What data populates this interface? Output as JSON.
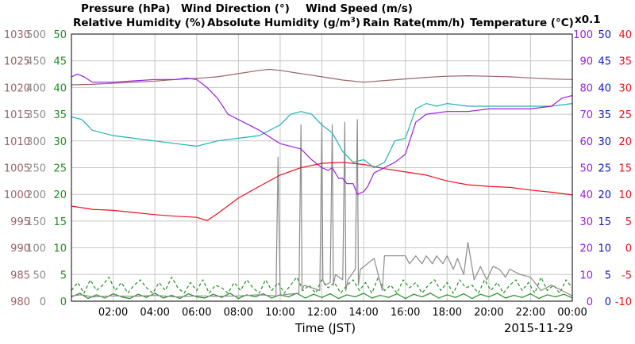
{
  "colors": {
    "pressure": "#9a6565",
    "wind_direction": "#8c8c8c",
    "wind_speed": "#1f8f1f",
    "humidity": "#9b1fe0",
    "abs_humidity": "#22b3b3",
    "rain_rate": "#1515d0",
    "temperature": "#ee1020",
    "grid": "#c8c8c8",
    "frame": "#000000"
  },
  "legend": {
    "pressure": "Pressure (hPa)",
    "wind_direction": "Wind Direction (°)",
    "wind_speed": "Wind Speed (m/s)",
    "humidity": "Relative Humidity (%)",
    "abs_humidity_main": "Absolute Humidity (g/m",
    "abs_humidity_sup": "3",
    "abs_humidity_close": ")",
    "rain_rate": "Rain Rate(mm/h)",
    "temperature": "Temperature (°C)",
    "scale_note": "x0.1"
  },
  "footer": {
    "xlabel": "Time (JST)",
    "date": "2015-11-29"
  },
  "chart_data": {
    "type": "line",
    "x_unit": "hours (JST)",
    "xlim": [
      0,
      24
    ],
    "x_ticks": [
      {
        "x": 2,
        "label": "02:00"
      },
      {
        "x": 4,
        "label": "04:00"
      },
      {
        "x": 6,
        "label": "06:00"
      },
      {
        "x": 8,
        "label": "08:00"
      },
      {
        "x": 10,
        "label": "10:00"
      },
      {
        "x": 12,
        "label": "12:00"
      },
      {
        "x": 14,
        "label": "14:00"
      },
      {
        "x": 16,
        "label": "16:00"
      },
      {
        "x": 18,
        "label": "18:00"
      },
      {
        "x": 20,
        "label": "20:00"
      },
      {
        "x": 22,
        "label": "22:00"
      },
      {
        "x": 24,
        "label": "00:00"
      }
    ],
    "axes": {
      "pressure": {
        "ticks": [
          "980",
          "985",
          "990",
          "995",
          "1000",
          "1005",
          "1010",
          "1015",
          "1020",
          "1025",
          "1030"
        ]
      },
      "wind_direction": {
        "ticks": [
          "0",
          "50",
          "100",
          "150",
          "200",
          "250",
          "300",
          "350",
          "400",
          "450",
          "500"
        ]
      },
      "wind_speed": {
        "ticks": [
          "0",
          "5",
          "10",
          "15",
          "20",
          "25",
          "30",
          "35",
          "40",
          "45",
          "50"
        ]
      },
      "humidity": {
        "ticks": [
          "0",
          "10",
          "20",
          "30",
          "40",
          "50",
          "60",
          "70",
          "80",
          "90",
          "100"
        ]
      },
      "rain_rate": {
        "ticks": [
          "0",
          "5",
          "10",
          "15",
          "20",
          "25",
          "30",
          "35",
          "40",
          "45",
          "50"
        ]
      },
      "temperature": {
        "ticks": [
          "-10",
          "-5",
          "0",
          "5",
          "10",
          "15",
          "20",
          "25",
          "30",
          "35",
          "40"
        ]
      }
    },
    "series": [
      {
        "name": "Pressure (hPa)",
        "key": "pressure",
        "dash": "",
        "x": [
          0,
          1,
          2,
          3,
          4,
          5,
          6,
          7,
          8,
          9,
          9.5,
          10,
          11,
          12,
          13,
          14,
          15,
          16,
          17,
          18,
          19,
          20,
          21,
          22,
          23,
          24
        ],
        "y": [
          1020.5,
          1020.6,
          1020.8,
          1021.0,
          1021.2,
          1021.5,
          1021.7,
          1022.0,
          1022.6,
          1023.2,
          1023.4,
          1023.2,
          1022.6,
          1022.0,
          1021.4,
          1021.0,
          1021.3,
          1021.6,
          1021.9,
          1022.1,
          1022.2,
          1022.1,
          1022.0,
          1021.8,
          1021.6,
          1021.5
        ]
      },
      {
        "name": "Relative Humidity (%)",
        "key": "humidity",
        "dash": "",
        "x": [
          0,
          0.3,
          0.6,
          1,
          2,
          3,
          4,
          5,
          5.5,
          6,
          6.5,
          7,
          7.5,
          8,
          9,
          10,
          11,
          11.5,
          12,
          12.3,
          12.5,
          12.8,
          13,
          13.2,
          13.5,
          13.7,
          14,
          14.2,
          14.5,
          15,
          15.5,
          16,
          16.5,
          17,
          18,
          19,
          20,
          21,
          22,
          23,
          23.5,
          24
        ],
        "y": [
          84,
          85,
          84,
          82,
          82,
          82.5,
          83,
          83,
          83.5,
          83,
          80,
          76,
          70,
          68,
          64,
          59,
          57,
          53,
          50,
          49,
          50,
          46,
          46,
          44,
          44,
          40,
          41,
          43,
          48,
          50,
          52,
          55,
          67,
          70,
          71,
          71,
          72,
          72,
          72,
          73,
          76,
          77
        ]
      },
      {
        "name": "Absolute Humidity (g/m³)",
        "key": "abs_humidity",
        "dash": "",
        "x": [
          0,
          0.5,
          1,
          2,
          3,
          4,
          5,
          6,
          7,
          8,
          9,
          10,
          10.5,
          11,
          11.5,
          12,
          12.5,
          13,
          13.5,
          14,
          14.5,
          15,
          15.5,
          16,
          16.5,
          17,
          17.5,
          18,
          19,
          20,
          21,
          22,
          23,
          24
        ],
        "y": [
          69,
          68,
          64,
          62,
          61,
          60,
          59,
          58,
          60,
          61,
          62,
          66,
          70,
          71,
          70,
          66,
          63,
          56,
          52,
          53,
          50,
          52,
          60,
          61,
          72,
          74,
          73,
          74,
          73,
          73,
          73,
          73,
          73,
          74
        ]
      },
      {
        "name": "Temperature (°C)",
        "key": "temperature",
        "dash": "",
        "x": [
          0,
          1,
          2,
          3,
          4,
          5,
          6,
          6.5,
          7,
          8,
          9,
          10,
          11,
          12,
          12.5,
          13,
          14,
          15,
          16,
          17,
          18,
          19,
          20,
          21,
          22,
          23,
          24
        ],
        "y": [
          7.8,
          7.2,
          7.0,
          6.6,
          6.2,
          5.9,
          5.7,
          5.1,
          6.4,
          9.3,
          11.5,
          13.6,
          15.0,
          15.8,
          15.9,
          16.0,
          15.6,
          14.8,
          14.2,
          13.6,
          12.5,
          11.8,
          11.5,
          11.3,
          10.8,
          10.4,
          9.9
        ]
      },
      {
        "name": "Wind Direction (°)",
        "key": "wind_direction",
        "dash": "",
        "x": [
          0,
          0.5,
          1,
          2,
          3,
          4,
          5,
          6,
          7,
          8,
          9,
          9.8,
          9.9,
          10.0,
          10.05,
          10.15,
          10.9,
          11.0,
          11.05,
          11.15,
          11.9,
          12.0,
          12.05,
          12.15,
          12.4,
          12.5,
          12.55,
          12.65,
          13.0,
          13.1,
          13.15,
          13.25,
          13.6,
          13.7,
          13.75,
          13.85,
          14.5,
          14.9,
          15.0,
          15.5,
          16.0,
          16.2,
          16.5,
          16.8,
          17.0,
          17.3,
          17.5,
          17.8,
          18.0,
          18.3,
          18.5,
          18.8,
          19.0,
          19.3,
          19.6,
          19.9,
          20.2,
          20.5,
          20.8,
          21.0,
          21.5,
          22.0,
          22.5,
          23.0,
          23.5,
          24.0
        ],
        "y": [
          10,
          12,
          8,
          10,
          9,
          11,
          8,
          10,
          9,
          10,
          12,
          10,
          270,
          20,
          10,
          12,
          15,
          330,
          20,
          30,
          20,
          335,
          40,
          30,
          35,
          330,
          30,
          50,
          40,
          335,
          20,
          40,
          60,
          340,
          30,
          60,
          80,
          20,
          85,
          85,
          85,
          70,
          85,
          70,
          85,
          70,
          85,
          70,
          85,
          60,
          80,
          50,
          110,
          40,
          65,
          40,
          65,
          60,
          45,
          60,
          50,
          45,
          20,
          30,
          20,
          10
        ]
      },
      {
        "name": "Wind Speed (m/s)",
        "key": "wind_speed",
        "dash": "4,3",
        "x": [
          0,
          0.3,
          0.6,
          0.9,
          1.2,
          1.5,
          1.8,
          2.1,
          2.4,
          2.7,
          3,
          3.3,
          3.6,
          3.9,
          4.2,
          4.5,
          4.8,
          5.1,
          5.4,
          5.7,
          6,
          6.3,
          6.6,
          6.9,
          7.2,
          7.5,
          7.8,
          8.1,
          8.4,
          8.7,
          9,
          9.3,
          9.6,
          9.9,
          10.2,
          10.5,
          10.8,
          11.1,
          11.4,
          11.7,
          12,
          12.3,
          12.6,
          12.9,
          13.2,
          13.5,
          13.8,
          14.1,
          14.4,
          14.7,
          15,
          15.3,
          15.6,
          15.9,
          16.2,
          16.5,
          16.8,
          17.1,
          17.4,
          17.7,
          18,
          18.3,
          18.6,
          18.9,
          19.2,
          19.5,
          19.8,
          20.1,
          20.4,
          20.7,
          21,
          21.3,
          21.6,
          21.9,
          22.2,
          22.5,
          22.8,
          23.1,
          23.4,
          23.7,
          24
        ],
        "y": [
          2,
          3.5,
          1.5,
          4,
          2,
          3,
          4.5,
          2,
          3.5,
          1.5,
          3,
          4,
          2.5,
          1.5,
          3.5,
          2,
          4.5,
          2.5,
          1.5,
          3.5,
          2,
          4,
          1.5,
          3,
          2.5,
          1.5,
          3.5,
          2,
          4,
          2.5,
          1.5,
          4,
          2,
          3.5,
          1.5,
          3,
          4.5,
          2,
          3,
          1.5,
          4,
          2.5,
          3.5,
          1.5,
          3,
          4,
          2,
          3.5,
          1.5,
          4.5,
          2,
          3,
          1.5,
          4,
          2.5,
          3.5,
          1.5,
          3,
          4,
          2,
          3.5,
          1.5,
          4,
          2.5,
          3,
          1.5,
          4,
          2,
          3.5,
          1.5,
          3,
          4,
          2,
          3.5,
          1.5,
          4.5,
          2,
          3,
          1.5,
          4,
          2.5
        ]
      },
      {
        "name": "Wind Speed (m/s)",
        "key": "wind_speed",
        "dash": "",
        "x": [
          0,
          0.4,
          0.8,
          1.2,
          1.6,
          2,
          2.4,
          2.8,
          3.2,
          3.6,
          4,
          4.4,
          4.8,
          5.2,
          5.6,
          6,
          6.4,
          6.8,
          7.2,
          7.6,
          8,
          8.4,
          8.8,
          9.2,
          9.6,
          10,
          10.4,
          10.8,
          11.2,
          11.6,
          12,
          12.4,
          12.8,
          13.2,
          13.6,
          14,
          14.4,
          14.8,
          15.2,
          15.6,
          16,
          16.4,
          16.8,
          17.2,
          17.6,
          18,
          18.4,
          18.8,
          19.2,
          19.6,
          20,
          20.4,
          20.8,
          21.2,
          21.6,
          22,
          22.4,
          22.8,
          23.2,
          23.6,
          24
        ],
        "y": [
          0.8,
          1.5,
          0.5,
          1.2,
          0.6,
          1.4,
          0.8,
          0.5,
          1.3,
          0.7,
          1.5,
          0.6,
          1.1,
          0.5,
          1.4,
          0.8,
          0.6,
          1.3,
          0.7,
          1.5,
          0.5,
          1.2,
          0.8,
          1.4,
          0.6,
          1.2,
          0.8,
          1.5,
          0.6,
          1.3,
          0.7,
          1.4,
          0.5,
          1.2,
          0.8,
          1.5,
          0.6,
          1.1,
          0.7,
          1.4,
          0.5,
          1.3,
          0.8,
          1.5,
          0.6,
          1.2,
          0.7,
          1.4,
          0.5,
          1.3,
          0.8,
          1.5,
          0.6,
          1.1,
          0.7,
          1.4,
          0.5,
          1.2,
          0.8,
          1.3,
          0.6
        ]
      }
    ]
  }
}
